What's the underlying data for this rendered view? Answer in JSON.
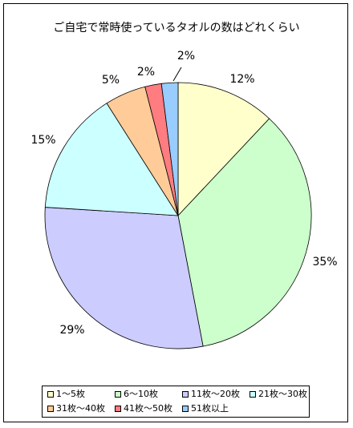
{
  "chart_data": {
    "type": "pie",
    "title": "ご自宅で常時使っているタオルの数はどれくらい",
    "slices": [
      {
        "label": "1～5枚",
        "value": 12,
        "pct_label": "12%",
        "color": "#FFFFCC"
      },
      {
        "label": "6～10枚",
        "value": 35,
        "pct_label": "35%",
        "color": "#CCFFCC"
      },
      {
        "label": "11枚～20枚",
        "value": 29,
        "pct_label": "29%",
        "color": "#CCCCFF"
      },
      {
        "label": "21枚～30枚",
        "value": 15,
        "pct_label": "15%",
        "color": "#CCFFFF"
      },
      {
        "label": "31枚～40枚",
        "value": 5,
        "pct_label": "5%",
        "color": "#FFCC99"
      },
      {
        "label": "41枚～50枚",
        "value": 2,
        "pct_label": "2%",
        "color": "#FF7C80"
      },
      {
        "label": "51枚以上",
        "value": 2,
        "pct_label": "2%",
        "color": "#99CCFF"
      }
    ],
    "legend_position": "bottom"
  }
}
